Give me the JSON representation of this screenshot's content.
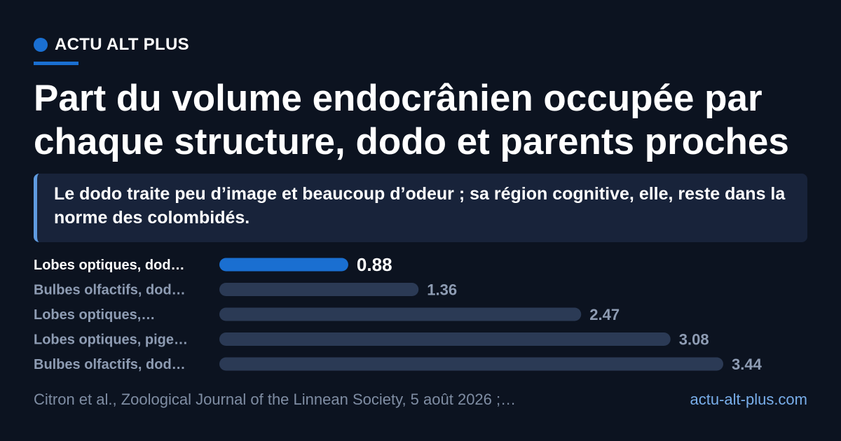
{
  "brand": {
    "name": "ACTU ALT PLUS"
  },
  "headline": {
    "title": "Part du volume endocrânien occupée par chaque structure, dodo et parents proches",
    "lede": "Le dodo traite peu d’image et beaucoup d’odeur ; sa région cognitive, elle, reste dans la norme des colombidés."
  },
  "chart_data": {
    "type": "bar",
    "orientation": "horizontal",
    "categories": [
      "Lobes optiques, dod…",
      "Bulbes olfactifs, dod…",
      "Lobes optiques,…",
      "Lobes optiques, pige…",
      "Bulbes olfactifs, dod…"
    ],
    "values": [
      0.88,
      1.36,
      2.47,
      3.08,
      3.44
    ],
    "value_labels": [
      "0.88",
      "1.36",
      "2.47",
      "3.08",
      "3.44"
    ],
    "highlight_index": 0,
    "colors": {
      "highlight": "#1a6fd1",
      "default": "#2b3a55",
      "label_default": "#8e9cb3",
      "label_highlight": "#ffffff"
    },
    "xlim": [
      0,
      3.44
    ],
    "grid": false,
    "legend": "none"
  },
  "footer": {
    "source": "Citron et al., Zoological Journal of the Linnean Society, 5 août 2026 ;…",
    "site": "actu-alt-plus.com"
  }
}
